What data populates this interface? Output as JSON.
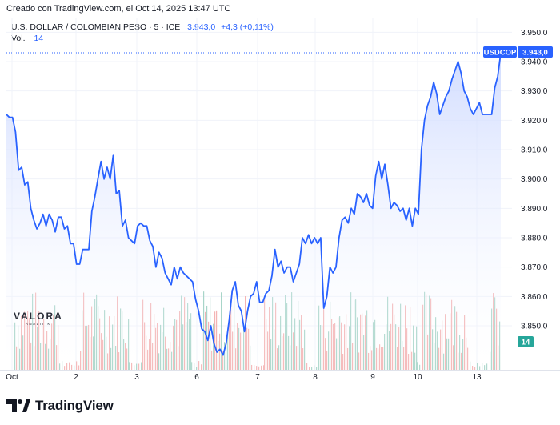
{
  "credit": "Creado con TradingView.com, el Oct 14, 2025 13:47 UTC",
  "legend": {
    "symbol": "U.S. DOLLAR / COLOMBIAN PESO · 5 · ICE",
    "last": "3.943,0",
    "change": "+4,3 (+0,11%)",
    "volume_label": "Vol.",
    "volume_value": "14"
  },
  "price_tag": {
    "symbol": "USDCOP",
    "value": "3.943,0"
  },
  "volume_tag": "14",
  "watermark": {
    "name": "VALORA",
    "sub": "ANALITIK"
  },
  "brand": "TradingView",
  "colors": {
    "line": "#2962ff",
    "area_top": "#c9d6ff",
    "vol_up": "#a8d5c9",
    "vol_down": "#f4b4b4",
    "grid": "#f0f3fa"
  },
  "chart_data": {
    "type": "area",
    "y_ticks": [
      "3.950,0",
      "3.940,0",
      "3.930,0",
      "3.920,0",
      "3.910,0",
      "3.900,0",
      "3.890,0",
      "3.880,0",
      "3.870,0",
      "3.860,0",
      "3.850,0"
    ],
    "x_ticks": [
      "Oct",
      "2",
      "3",
      "6",
      "7",
      "8",
      "9",
      "10",
      "13"
    ],
    "ylim": [
      3835,
      3955
    ],
    "series": [
      {
        "values": [
          3922,
          3921,
          3921,
          3916,
          3903,
          3904,
          3898,
          3899,
          3890,
          3886,
          3883,
          3885,
          3888,
          3884,
          3888,
          3886,
          3882,
          3887,
          3887,
          3883,
          3884,
          3878,
          3878,
          3871,
          3871,
          3876,
          3876,
          3876,
          3889,
          3894,
          3900,
          3906,
          3900,
          3904,
          3900,
          3908,
          3895,
          3896,
          3884,
          3886,
          3880,
          3879,
          3878,
          3884,
          3885,
          3884,
          3884,
          3879,
          3877,
          3870,
          3875,
          3873,
          3868,
          3866,
          3864,
          3870,
          3866,
          3870,
          3868,
          3867,
          3866,
          3865,
          3859,
          3855,
          3849,
          3848,
          3845,
          3850,
          3844,
          3841,
          3842,
          3840,
          3844,
          3852,
          3862,
          3865,
          3857,
          3855,
          3848,
          3855,
          3860,
          3861,
          3865,
          3858,
          3858,
          3861,
          3862,
          3867,
          3876,
          3870,
          3872,
          3868,
          3870,
          3870,
          3865,
          3868,
          3871,
          3880,
          3878,
          3881,
          3878,
          3880,
          3878,
          3880,
          3856,
          3860,
          3870,
          3868,
          3870,
          3880,
          3886,
          3887,
          3885,
          3890,
          3888,
          3895,
          3894,
          3892,
          3895,
          3891,
          3890,
          3901,
          3906,
          3900,
          3905,
          3898,
          3890,
          3892,
          3891,
          3889,
          3890,
          3886,
          3890,
          3884,
          3890,
          3888,
          3910,
          3920,
          3925,
          3928,
          3933,
          3929,
          3922,
          3925,
          3928,
          3930,
          3934,
          3937,
          3940,
          3936,
          3930,
          3928,
          3924,
          3922,
          3924,
          3926,
          3922,
          3922,
          3922,
          3922,
          3931,
          3935,
          3943
        ]
      }
    ]
  }
}
